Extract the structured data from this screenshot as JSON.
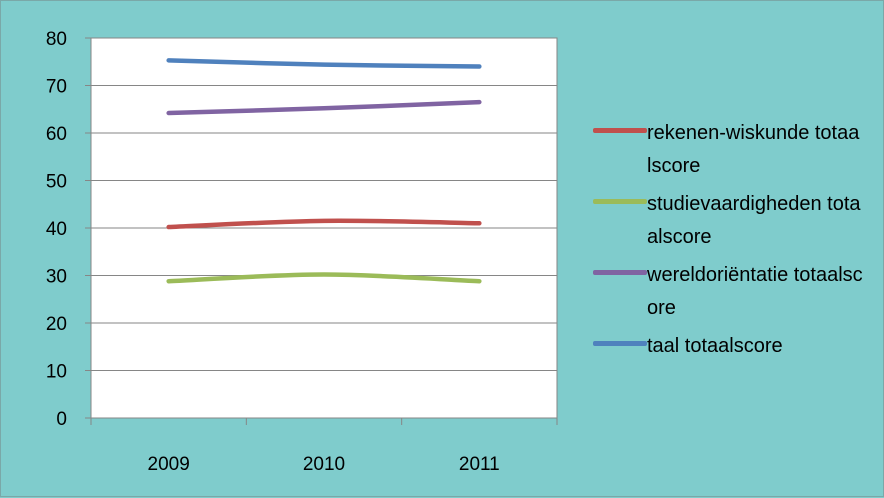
{
  "chart_data": {
    "type": "line",
    "categories": [
      "2009",
      "2010",
      "2011"
    ],
    "series": [
      {
        "name": "rekenen-wiskunde totaalscore",
        "values": [
          40.2,
          41.5,
          41.0
        ],
        "color": "#c0504d"
      },
      {
        "name": "studievaardigheden totaalscore",
        "values": [
          28.8,
          30.2,
          28.8
        ],
        "color": "#9bbb59"
      },
      {
        "name": "wereldoriëntatie totaalscore",
        "values": [
          64.2,
          65.2,
          66.5
        ],
        "color": "#8064a2"
      },
      {
        "name": "taal totaalscore",
        "values": [
          75.3,
          74.4,
          74.0
        ],
        "color": "#4f81bd"
      }
    ],
    "y_ticks": [
      "0",
      "10",
      "20",
      "30",
      "40",
      "50",
      "60",
      "70",
      "80"
    ],
    "ylim": [
      0,
      80
    ],
    "grid": true,
    "legend_position": "right",
    "plot_background": "#ffffff",
    "chart_background": "#7fcccc"
  }
}
